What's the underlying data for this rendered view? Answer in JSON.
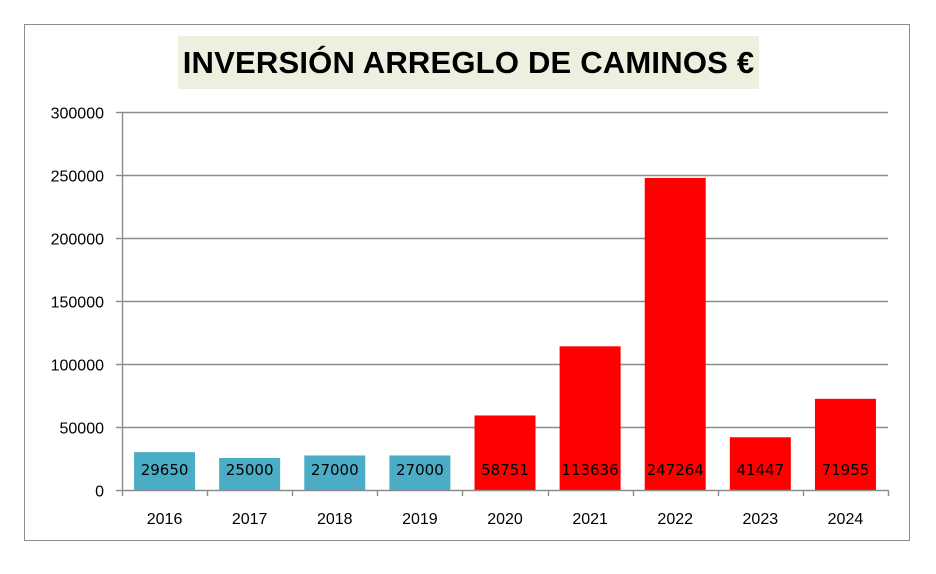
{
  "chart_data": {
    "type": "bar",
    "title": "INVERSIÓN ARREGLO DE CAMINOS €",
    "xlabel": "",
    "ylabel": "",
    "categories": [
      "2016",
      "2017",
      "2018",
      "2019",
      "2020",
      "2021",
      "2022",
      "2023",
      "2024"
    ],
    "values": [
      29650,
      25000,
      27000,
      27000,
      58751,
      113636,
      247264,
      41447,
      71955
    ],
    "data_labels": [
      "29650",
      "25000",
      "27000",
      "27000",
      "58751",
      "113636",
      "247264",
      "41447",
      "71955"
    ],
    "bar_colors": [
      "#4bacc6",
      "#4bacc6",
      "#4bacc6",
      "#4bacc6",
      "#ff0000",
      "#ff0000",
      "#ff0000",
      "#ff0000",
      "#ff0000"
    ],
    "ylim": [
      0,
      300000
    ],
    "yticks": [
      0,
      50000,
      100000,
      150000,
      200000,
      250000,
      300000
    ],
    "ytick_labels": [
      "0",
      "50000",
      "100000",
      "150000",
      "200000",
      "250000",
      "300000"
    ],
    "grid": true,
    "legend": "none",
    "colors": {
      "title_background": "#ebf1de",
      "gridline": "#8c8c8c"
    }
  }
}
